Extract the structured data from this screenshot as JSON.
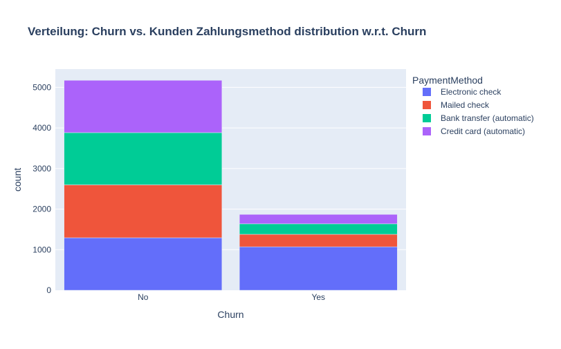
{
  "chart_data": {
    "type": "bar",
    "stacked": true,
    "title": "Verteilung: Churn vs. Kunden Zahlungsmethod distribution w.r.t. Churn",
    "xlabel": "Churn",
    "ylabel": "count",
    "categories": [
      "No",
      "Yes"
    ],
    "ylim": [
      0,
      5450
    ],
    "yticks": [
      0,
      1000,
      2000,
      3000,
      4000,
      5000
    ],
    "grid": true,
    "legend": {
      "title": "PaymentMethod",
      "placement": "right"
    },
    "series": [
      {
        "name": "Electronic check",
        "color": "#636efa",
        "values": [
          1294,
          1071
        ]
      },
      {
        "name": "Mailed check",
        "color": "#ef553b",
        "values": [
          1304,
          308
        ]
      },
      {
        "name": "Bank transfer (automatic)",
        "color": "#00cc96",
        "values": [
          1286,
          258
        ]
      },
      {
        "name": "Credit card (automatic)",
        "color": "#ab63fa",
        "values": [
          1290,
          232
        ]
      }
    ],
    "colors": {
      "plot_background": "#e5ecf6",
      "grid": "#ffffff",
      "text": "#2a3f5f"
    }
  }
}
